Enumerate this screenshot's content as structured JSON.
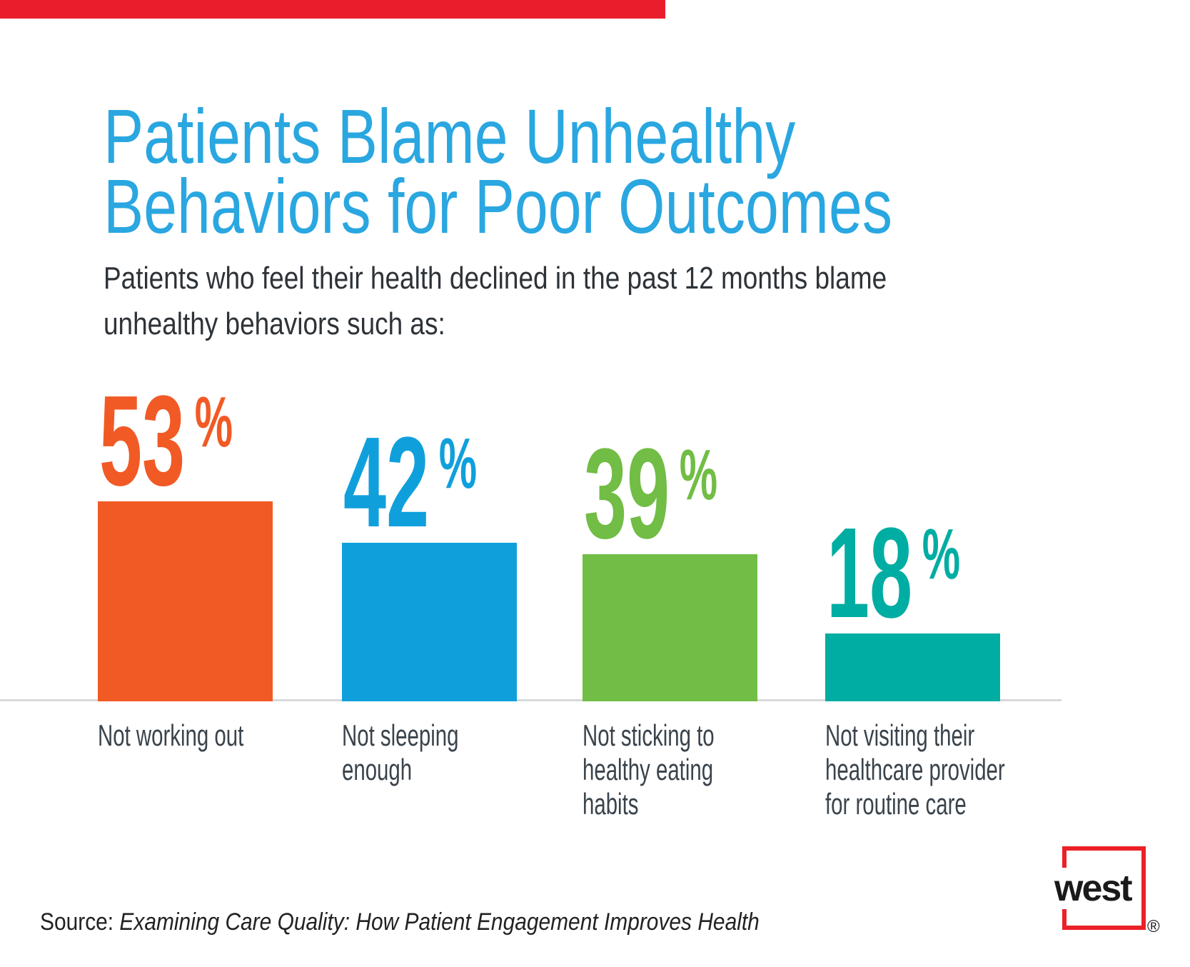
{
  "decor": {
    "top_bar_color": "#ea1d2c"
  },
  "header": {
    "title_lines": [
      "Patients Blame Unhealthy",
      "Behaviors for Poor Outcomes"
    ],
    "title_color": "#2aa7e0",
    "subtitle_lines": [
      "Patients who feel their health declined in the past 12 months blame",
      "unhealthy behaviors such as:"
    ]
  },
  "chart_data": {
    "type": "bar",
    "title": "Patients Blame Unhealthy Behaviors for Poor Outcomes",
    "subtitle": "Patients who feel their health declined in the past 12 months blame unhealthy behaviors such as:",
    "unit": "%",
    "categories": [
      "Not working out",
      "Not sleeping enough",
      "Not sticking to healthy eating habits",
      "Not visiting their healthcare provider for routine care"
    ],
    "category_lines": [
      [
        "Not working out"
      ],
      [
        "Not sleeping",
        "enough"
      ],
      [
        "Not sticking to",
        "healthy eating",
        "habits"
      ],
      [
        "Not visiting their",
        "healthcare provider",
        "for routine care"
      ]
    ],
    "values": [
      53,
      42,
      39,
      18
    ],
    "data_labels": [
      "53%",
      "42%",
      "39%",
      "18%"
    ],
    "colors": [
      "#f15a25",
      "#0fa0dc",
      "#71bd45",
      "#00ada2"
    ],
    "axis": {
      "baseline_color": "#d8d9da",
      "gridlines": false,
      "y_axis_shown": false,
      "ylim": [
        0,
        60
      ]
    },
    "legend": "none"
  },
  "source": {
    "prefix": "Source: ",
    "citation": "Examining Care Quality: How Patient Engagement Improves Health"
  },
  "logo": {
    "text": "west",
    "reg": "®",
    "color": "#ec2027"
  }
}
